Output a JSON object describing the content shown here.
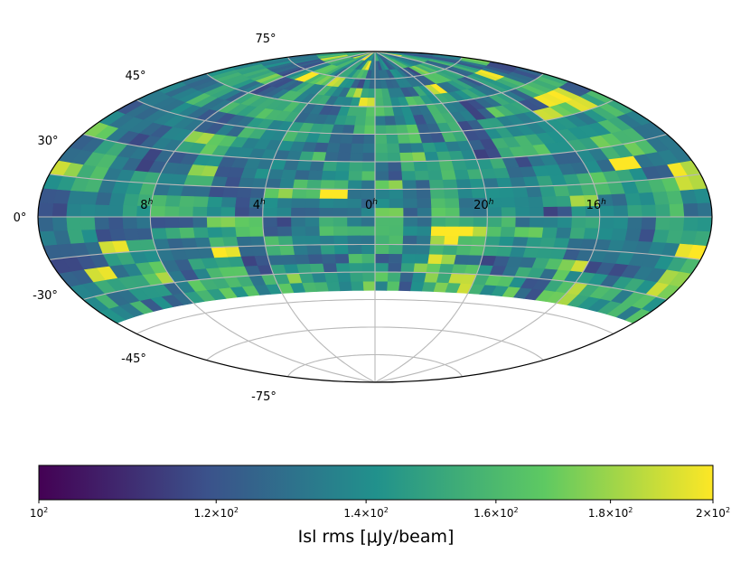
{
  "chart_data": {
    "type": "heatmap",
    "projection": "aitoff",
    "title": "",
    "grid": true,
    "lat_tick_labels": [
      "75°",
      "45°",
      "30°",
      "0°",
      "-30°",
      "-45°",
      "-75°"
    ],
    "lon_tick_labels": [
      "8h",
      "4h",
      "0h",
      "20h",
      "16h"
    ],
    "coverage_dec_min": -40,
    "colorbar": {
      "label": "Isl rms [μJy/beam]",
      "scale": "log",
      "range": [
        100,
        200
      ],
      "ticks": [
        100,
        120,
        140,
        160,
        180,
        200
      ],
      "tick_labels": [
        "10^2",
        "1.2×10^2",
        "1.4×10^2",
        "1.6×10^2",
        "1.8×10^2",
        "2×10^2"
      ],
      "colormap": "viridis",
      "colors": [
        "#440154",
        "#3b528b",
        "#21918c",
        "#5ec962",
        "#fde725"
      ]
    }
  }
}
